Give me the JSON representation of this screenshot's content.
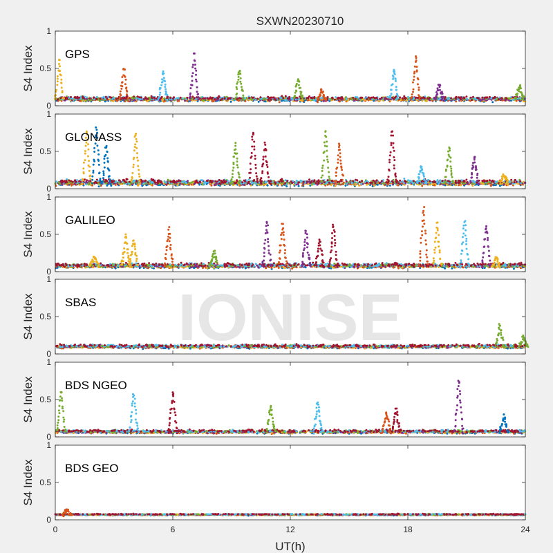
{
  "figure": {
    "title": "SXWN20230710",
    "xlabel": "UT(h)",
    "watermark": "IONISE",
    "background": "#f0f0f0",
    "axes_background": "#ffffff",
    "axis_color": "#262626"
  },
  "chart_data": {
    "type": "scatter",
    "title": "SXWN20230710",
    "xlabel": "UT(h)",
    "ylabel": "S4 Index",
    "xlim": [
      0,
      24
    ],
    "ylim": [
      0,
      1
    ],
    "xticks": [
      0,
      6,
      12,
      18,
      24
    ],
    "yticks": [
      0,
      0.5,
      1
    ],
    "yticklabels": [
      "0",
      "0.5",
      "1"
    ],
    "grid": false,
    "legend": "none",
    "colors": [
      "#0072bd",
      "#d95319",
      "#edb120",
      "#7e2f8e",
      "#77ac30",
      "#4dbeee",
      "#a2142f"
    ],
    "panels": [
      {
        "name": "GPS",
        "baseline": 0.09,
        "spread": 0.04,
        "spikes": [
          {
            "x": 0.2,
            "peak": 0.62,
            "color": 2
          },
          {
            "x": 3.5,
            "peak": 0.52,
            "color": 1
          },
          {
            "x": 5.5,
            "peak": 0.46,
            "color": 5
          },
          {
            "x": 7.1,
            "peak": 0.7,
            "color": 3
          },
          {
            "x": 9.4,
            "peak": 0.5,
            "color": 4
          },
          {
            "x": 12.4,
            "peak": 0.37,
            "color": 4
          },
          {
            "x": 13.6,
            "peak": 0.22,
            "color": 1
          },
          {
            "x": 17.3,
            "peak": 0.51,
            "color": 5
          },
          {
            "x": 18.4,
            "peak": 0.67,
            "color": 1
          },
          {
            "x": 19.6,
            "peak": 0.28,
            "color": 3
          },
          {
            "x": 23.7,
            "peak": 0.28,
            "color": 4
          }
        ]
      },
      {
        "name": "GLONASS",
        "baseline": 0.08,
        "spread": 0.05,
        "spikes": [
          {
            "x": 1.6,
            "peak": 0.8,
            "color": 2
          },
          {
            "x": 2.1,
            "peak": 0.85,
            "color": 0
          },
          {
            "x": 2.6,
            "peak": 0.6,
            "color": 0
          },
          {
            "x": 4.1,
            "peak": 0.78,
            "color": 2
          },
          {
            "x": 9.2,
            "peak": 0.62,
            "color": 4
          },
          {
            "x": 10.1,
            "peak": 0.8,
            "color": 6
          },
          {
            "x": 10.7,
            "peak": 0.62,
            "color": 6
          },
          {
            "x": 13.8,
            "peak": 0.82,
            "color": 4
          },
          {
            "x": 14.5,
            "peak": 0.62,
            "color": 1
          },
          {
            "x": 17.2,
            "peak": 0.8,
            "color": 6
          },
          {
            "x": 18.7,
            "peak": 0.3,
            "color": 5
          },
          {
            "x": 20.1,
            "peak": 0.56,
            "color": 4
          },
          {
            "x": 21.4,
            "peak": 0.45,
            "color": 3
          },
          {
            "x": 22.9,
            "peak": 0.2,
            "color": 2
          }
        ]
      },
      {
        "name": "GALILEO",
        "baseline": 0.08,
        "spread": 0.04,
        "spikes": [
          {
            "x": 2.0,
            "peak": 0.2,
            "color": 2
          },
          {
            "x": 3.6,
            "peak": 0.5,
            "color": 2
          },
          {
            "x": 4.0,
            "peak": 0.43,
            "color": 2
          },
          {
            "x": 5.8,
            "peak": 0.6,
            "color": 1
          },
          {
            "x": 8.1,
            "peak": 0.28,
            "color": 4
          },
          {
            "x": 10.8,
            "peak": 0.7,
            "color": 3
          },
          {
            "x": 11.6,
            "peak": 0.66,
            "color": 1
          },
          {
            "x": 12.8,
            "peak": 0.56,
            "color": 3
          },
          {
            "x": 13.5,
            "peak": 0.43,
            "color": 6
          },
          {
            "x": 14.2,
            "peak": 0.66,
            "color": 6
          },
          {
            "x": 18.8,
            "peak": 0.88,
            "color": 1
          },
          {
            "x": 19.5,
            "peak": 0.66,
            "color": 2
          },
          {
            "x": 20.9,
            "peak": 0.72,
            "color": 5
          },
          {
            "x": 22.0,
            "peak": 0.63,
            "color": 3
          },
          {
            "x": 22.5,
            "peak": 0.2,
            "color": 2
          }
        ]
      },
      {
        "name": "SBAS",
        "baseline": 0.1,
        "spread": 0.03,
        "spikes": [
          {
            "x": 22.7,
            "peak": 0.4,
            "color": 4
          },
          {
            "x": 23.9,
            "peak": 0.25,
            "color": 4
          }
        ]
      },
      {
        "name": "BDS NGEO",
        "baseline": 0.07,
        "spread": 0.03,
        "spikes": [
          {
            "x": 0.3,
            "peak": 0.65,
            "color": 4
          },
          {
            "x": 4.0,
            "peak": 0.62,
            "color": 5
          },
          {
            "x": 6.0,
            "peak": 0.62,
            "color": 6
          },
          {
            "x": 11.0,
            "peak": 0.42,
            "color": 4
          },
          {
            "x": 13.4,
            "peak": 0.48,
            "color": 5
          },
          {
            "x": 16.9,
            "peak": 0.33,
            "color": 1
          },
          {
            "x": 17.4,
            "peak": 0.38,
            "color": 6
          },
          {
            "x": 20.6,
            "peak": 0.8,
            "color": 3
          },
          {
            "x": 22.9,
            "peak": 0.3,
            "color": 0
          }
        ]
      },
      {
        "name": "BDS GEO",
        "baseline": 0.07,
        "spread": 0.012,
        "spikes": [
          {
            "x": 0.6,
            "peak": 0.14,
            "color": 1
          }
        ]
      }
    ]
  }
}
